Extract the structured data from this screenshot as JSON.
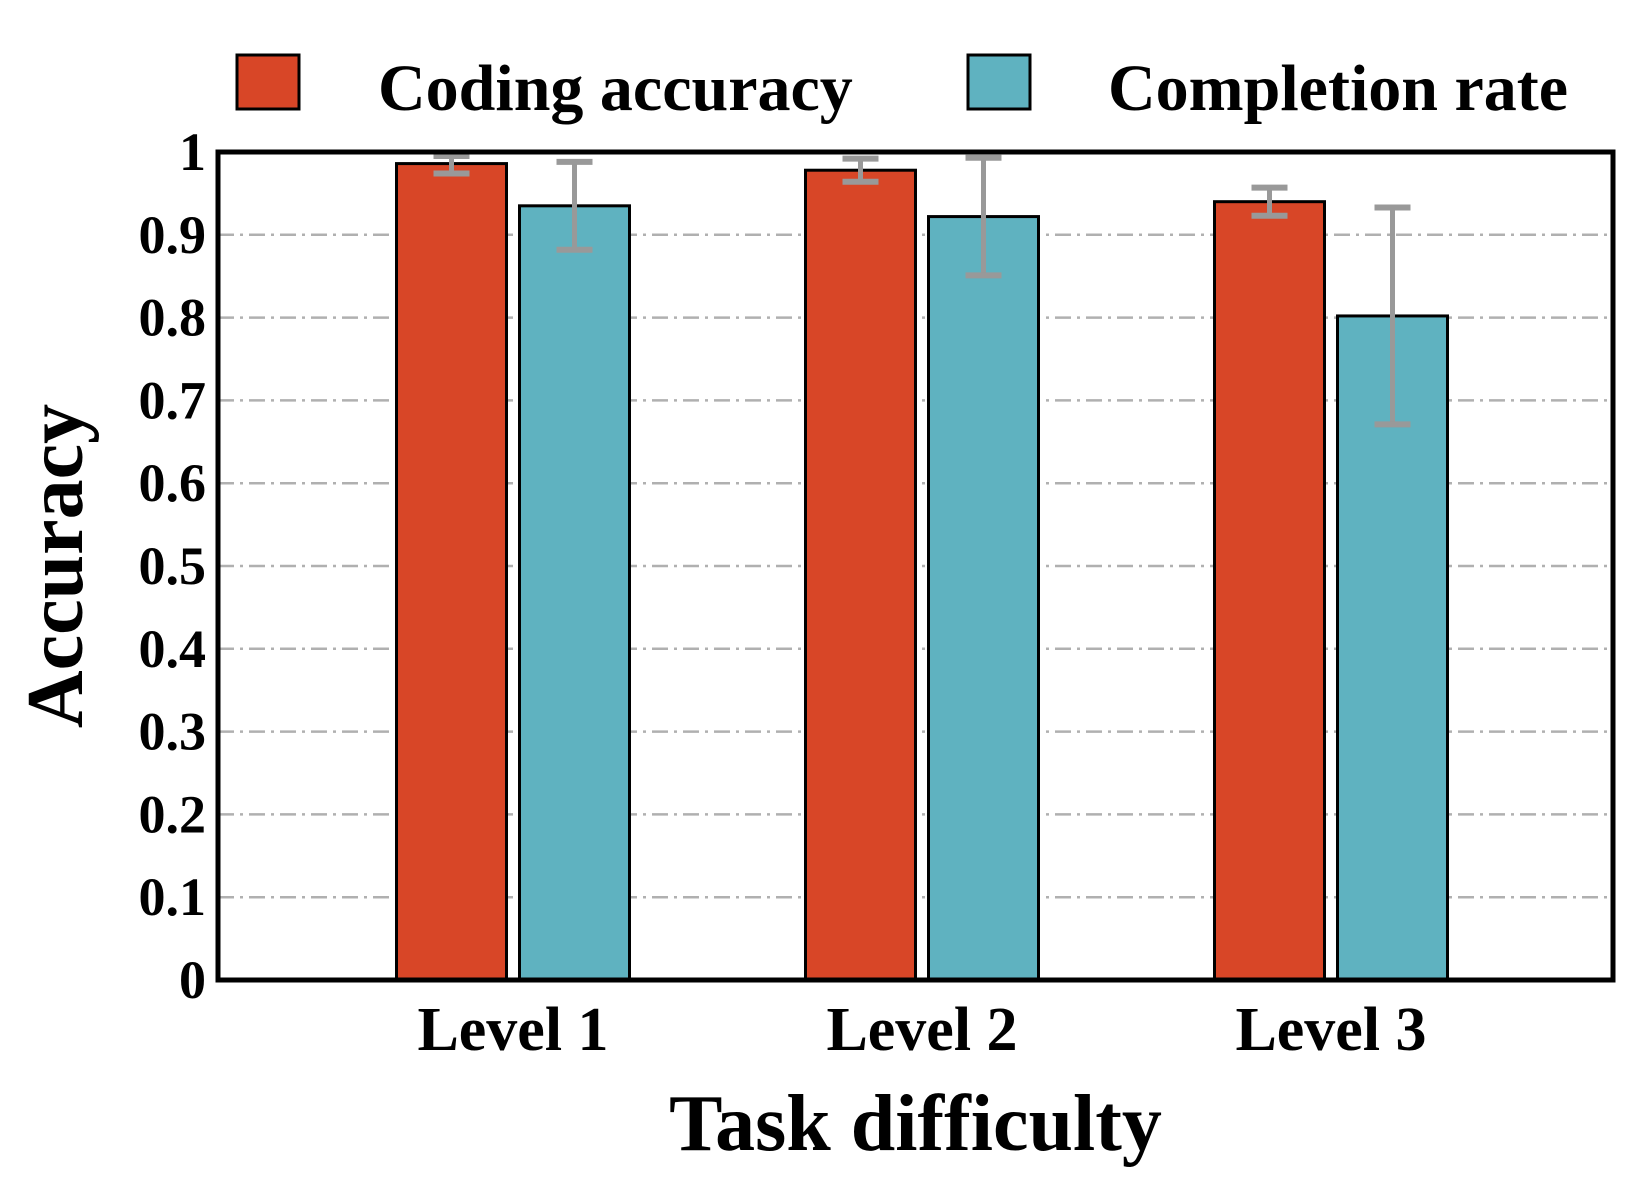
{
  "chart_data": {
    "type": "bar",
    "categories": [
      "Level 1",
      "Level 2",
      "Level 3"
    ],
    "series": [
      {
        "name": "Coding accuracy",
        "color": "#d84627",
        "values": [
          0.986,
          0.978,
          0.94
        ],
        "error": [
          0.012,
          0.014,
          0.017
        ]
      },
      {
        "name": "Completion rate",
        "color": "#5fb2c0",
        "values": [
          0.935,
          0.922,
          0.802
        ],
        "error": [
          0.053,
          0.071,
          0.131
        ]
      }
    ],
    "xlabel": "Task difficulty",
    "ylabel": "Accuracy",
    "ylim": [
      0,
      1
    ],
    "yticks": [
      "0",
      "0.1",
      "0.2",
      "0.3",
      "0.4",
      "0.5",
      "0.6",
      "0.7",
      "0.8",
      "0.9",
      "1"
    ],
    "grid": true,
    "legend_position": "top",
    "error_bar_color": "#999999",
    "grid_color": "#b0b0b0"
  }
}
